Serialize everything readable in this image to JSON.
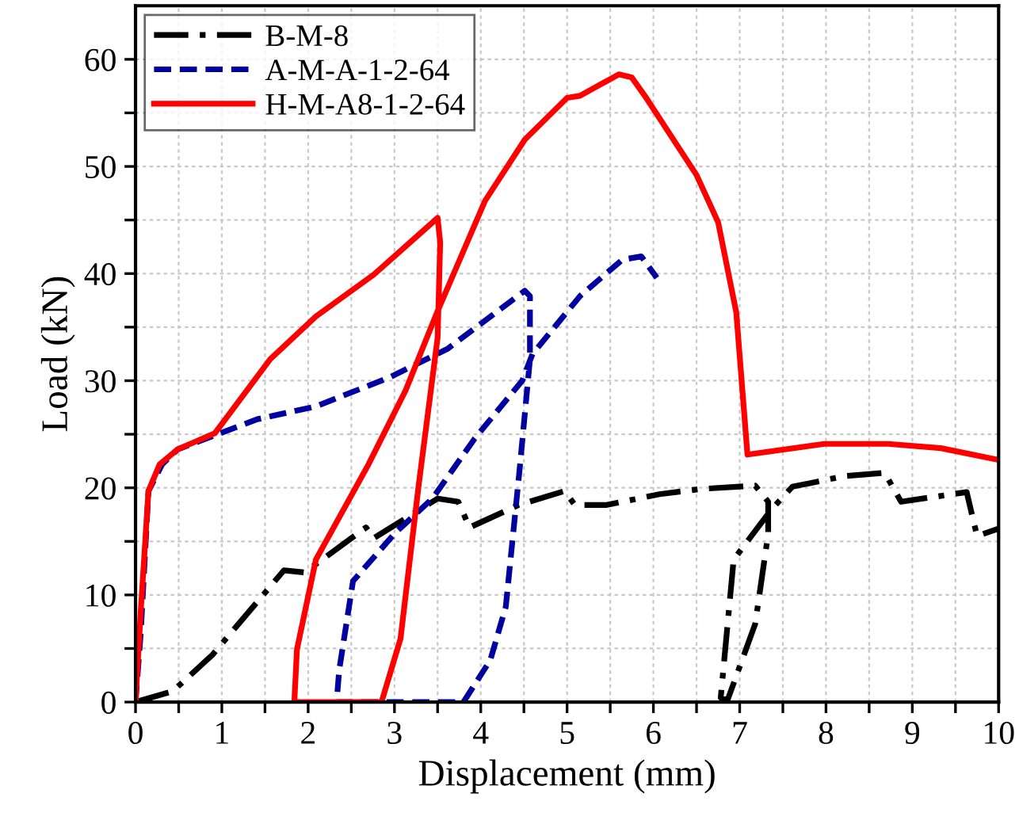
{
  "chart_data": {
    "type": "line",
    "xlabel": "Displacement (mm)",
    "ylabel": "Load (kN)",
    "xlim": [
      0,
      10
    ],
    "ylim": [
      0,
      65
    ],
    "xticks": [
      0,
      {
        "value": 0.5,
        "label": null
      },
      1,
      {
        "value": 1.5,
        "label": null
      },
      2,
      {
        "value": 2.5,
        "label": null
      },
      3,
      {
        "value": 3.5,
        "label": null
      },
      4,
      {
        "value": 4.5,
        "label": null
      },
      5,
      {
        "value": 5.5,
        "label": null
      },
      6,
      {
        "value": 6.5,
        "label": null
      },
      7,
      {
        "value": 7.5,
        "label": null
      },
      8,
      {
        "value": 8.5,
        "label": null
      },
      9,
      {
        "value": 9.5,
        "label": null
      },
      10
    ],
    "yticks": [
      0,
      {
        "value": 5,
        "label": null
      },
      10,
      {
        "value": 15,
        "label": null
      },
      20,
      {
        "value": 25,
        "label": null
      },
      30,
      {
        "value": 35,
        "label": null
      },
      40,
      {
        "value": 45,
        "label": null
      },
      50,
      {
        "value": 55,
        "label": null
      },
      60
    ],
    "grid": true,
    "legend": "top left",
    "marker": "none",
    "series": [
      {
        "name": "B-M-8",
        "color": "#000000",
        "line_style": "dashdot",
        "x": [
          0,
          0.43,
          0.89,
          1.72,
          1.96,
          2.67,
          2.76,
          3.5,
          3.74,
          3.87,
          4.44,
          4.97,
          5.09,
          5.46,
          6.07,
          6.56,
          7.18,
          7.33,
          7.33,
          7.18,
          6.86,
          6.78,
          6.93,
          7.36,
          7.61,
          8.22,
          8.68,
          8.87,
          9.63,
          9.75,
          10.0
        ],
        "values": [
          0,
          1.0,
          4.4,
          12.3,
          12.1,
          16.3,
          15.3,
          19.0,
          18.7,
          16.3,
          18.4,
          19.7,
          18.4,
          18.4,
          19.4,
          19.9,
          20.2,
          18.7,
          15.7,
          7.3,
          0.2,
          0.4,
          13.3,
          17.9,
          20.1,
          21.1,
          21.4,
          18.7,
          19.6,
          15.5,
          16.2
        ]
      },
      {
        "name": "A-M-A-1-2-64",
        "color": "#0000a0",
        "line_style": "dashed",
        "x": [
          0,
          0.06,
          0.15,
          0.31,
          0.49,
          0.92,
          1.41,
          2.09,
          2.94,
          3.62,
          4.51,
          4.57,
          4.57,
          4.45,
          4.29,
          4.11,
          3.8,
          2.33,
          2.36,
          2.52,
          3.01,
          3.44,
          3.93,
          4.48,
          4.6,
          5.15,
          5.64,
          5.86,
          6.04
        ],
        "values": [
          0,
          6.4,
          19.7,
          22.2,
          23.6,
          24.9,
          26.4,
          27.6,
          30.3,
          33.0,
          38.4,
          37.9,
          32.0,
          21.7,
          8.9,
          3.9,
          0,
          0,
          3.0,
          11.3,
          15.8,
          19.0,
          24.6,
          30.0,
          32.5,
          37.9,
          41.3,
          41.6,
          39.6
        ]
      },
      {
        "name": "H-M-A8-1-2-64",
        "color": "#ff0000",
        "line_style": "solid",
        "x": [
          0,
          0.06,
          0.15,
          0.28,
          0.49,
          0.92,
          1.56,
          2.09,
          2.76,
          3.5,
          3.53,
          3.5,
          3.28,
          3.07,
          2.85,
          1.84,
          1.87,
          2.09,
          2.7,
          3.13,
          3.5,
          4.05,
          4.51,
          5.0,
          5.15,
          5.6,
          5.75,
          5.9,
          6.5,
          6.75,
          6.96,
          7.09,
          7.98,
          8.72,
          9.33,
          10.0
        ],
        "values": [
          0,
          8.4,
          19.7,
          22.2,
          23.6,
          25.1,
          32.0,
          36.0,
          39.9,
          45.2,
          42.9,
          34.0,
          20.2,
          5.9,
          0,
          0,
          4.9,
          13.3,
          22.2,
          29.1,
          36.5,
          46.8,
          52.5,
          56.4,
          56.6,
          58.6,
          58.3,
          56.6,
          49.2,
          44.8,
          36.4,
          23.1,
          24.1,
          24.1,
          23.7,
          22.6
        ]
      }
    ]
  }
}
